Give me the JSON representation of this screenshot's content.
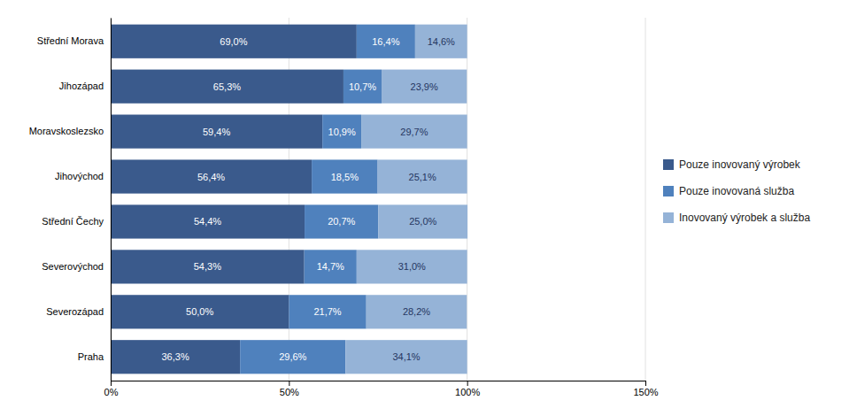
{
  "chart_data": {
    "type": "bar",
    "orientation": "horizontal",
    "stacked": true,
    "data_labels": true,
    "grid": true,
    "legend": "right",
    "categories": [
      "Střední Morava",
      "Jihozápad",
      "Moravskoslezsko",
      "Jihovýchod",
      "Střední Čechy",
      "Severovýchod",
      "Severozápad",
      "Praha"
    ],
    "series": [
      {
        "name": "Pouze inovovaný výrobek",
        "color": "#3A5A8C",
        "values": [
          69.0,
          65.3,
          59.4,
          56.4,
          54.4,
          54.3,
          50.0,
          36.3
        ],
        "value_labels": [
          "69,0%",
          "65,3%",
          "59,4%",
          "56,4%",
          "54,4%",
          "54,3%",
          "50,0%",
          "36,3%"
        ]
      },
      {
        "name": "Pouze inovovaná služba",
        "color": "#4F81BD",
        "values": [
          16.4,
          10.7,
          10.9,
          18.5,
          20.7,
          14.7,
          21.7,
          29.6
        ],
        "value_labels": [
          "16,4%",
          "10,7%",
          "10,9%",
          "18,5%",
          "20,7%",
          "14,7%",
          "21,7%",
          "29,6%"
        ]
      },
      {
        "name": "Inovovaný výrobek a služba",
        "color": "#95B3D7",
        "values": [
          14.6,
          23.9,
          29.7,
          25.1,
          25.0,
          31.0,
          28.2,
          34.1
        ],
        "value_labels": [
          "14,6%",
          "23,9%",
          "29,7%",
          "25,1%",
          "25,0%",
          "31,0%",
          "28,2%",
          "34,1%"
        ]
      }
    ],
    "xlim": [
      0,
      150
    ],
    "xticks": [
      {
        "value": 0,
        "label": "0%"
      },
      {
        "value": 50,
        "label": "50%"
      },
      {
        "value": 100,
        "label": "100%"
      },
      {
        "value": 150,
        "label": "150%"
      }
    ]
  }
}
